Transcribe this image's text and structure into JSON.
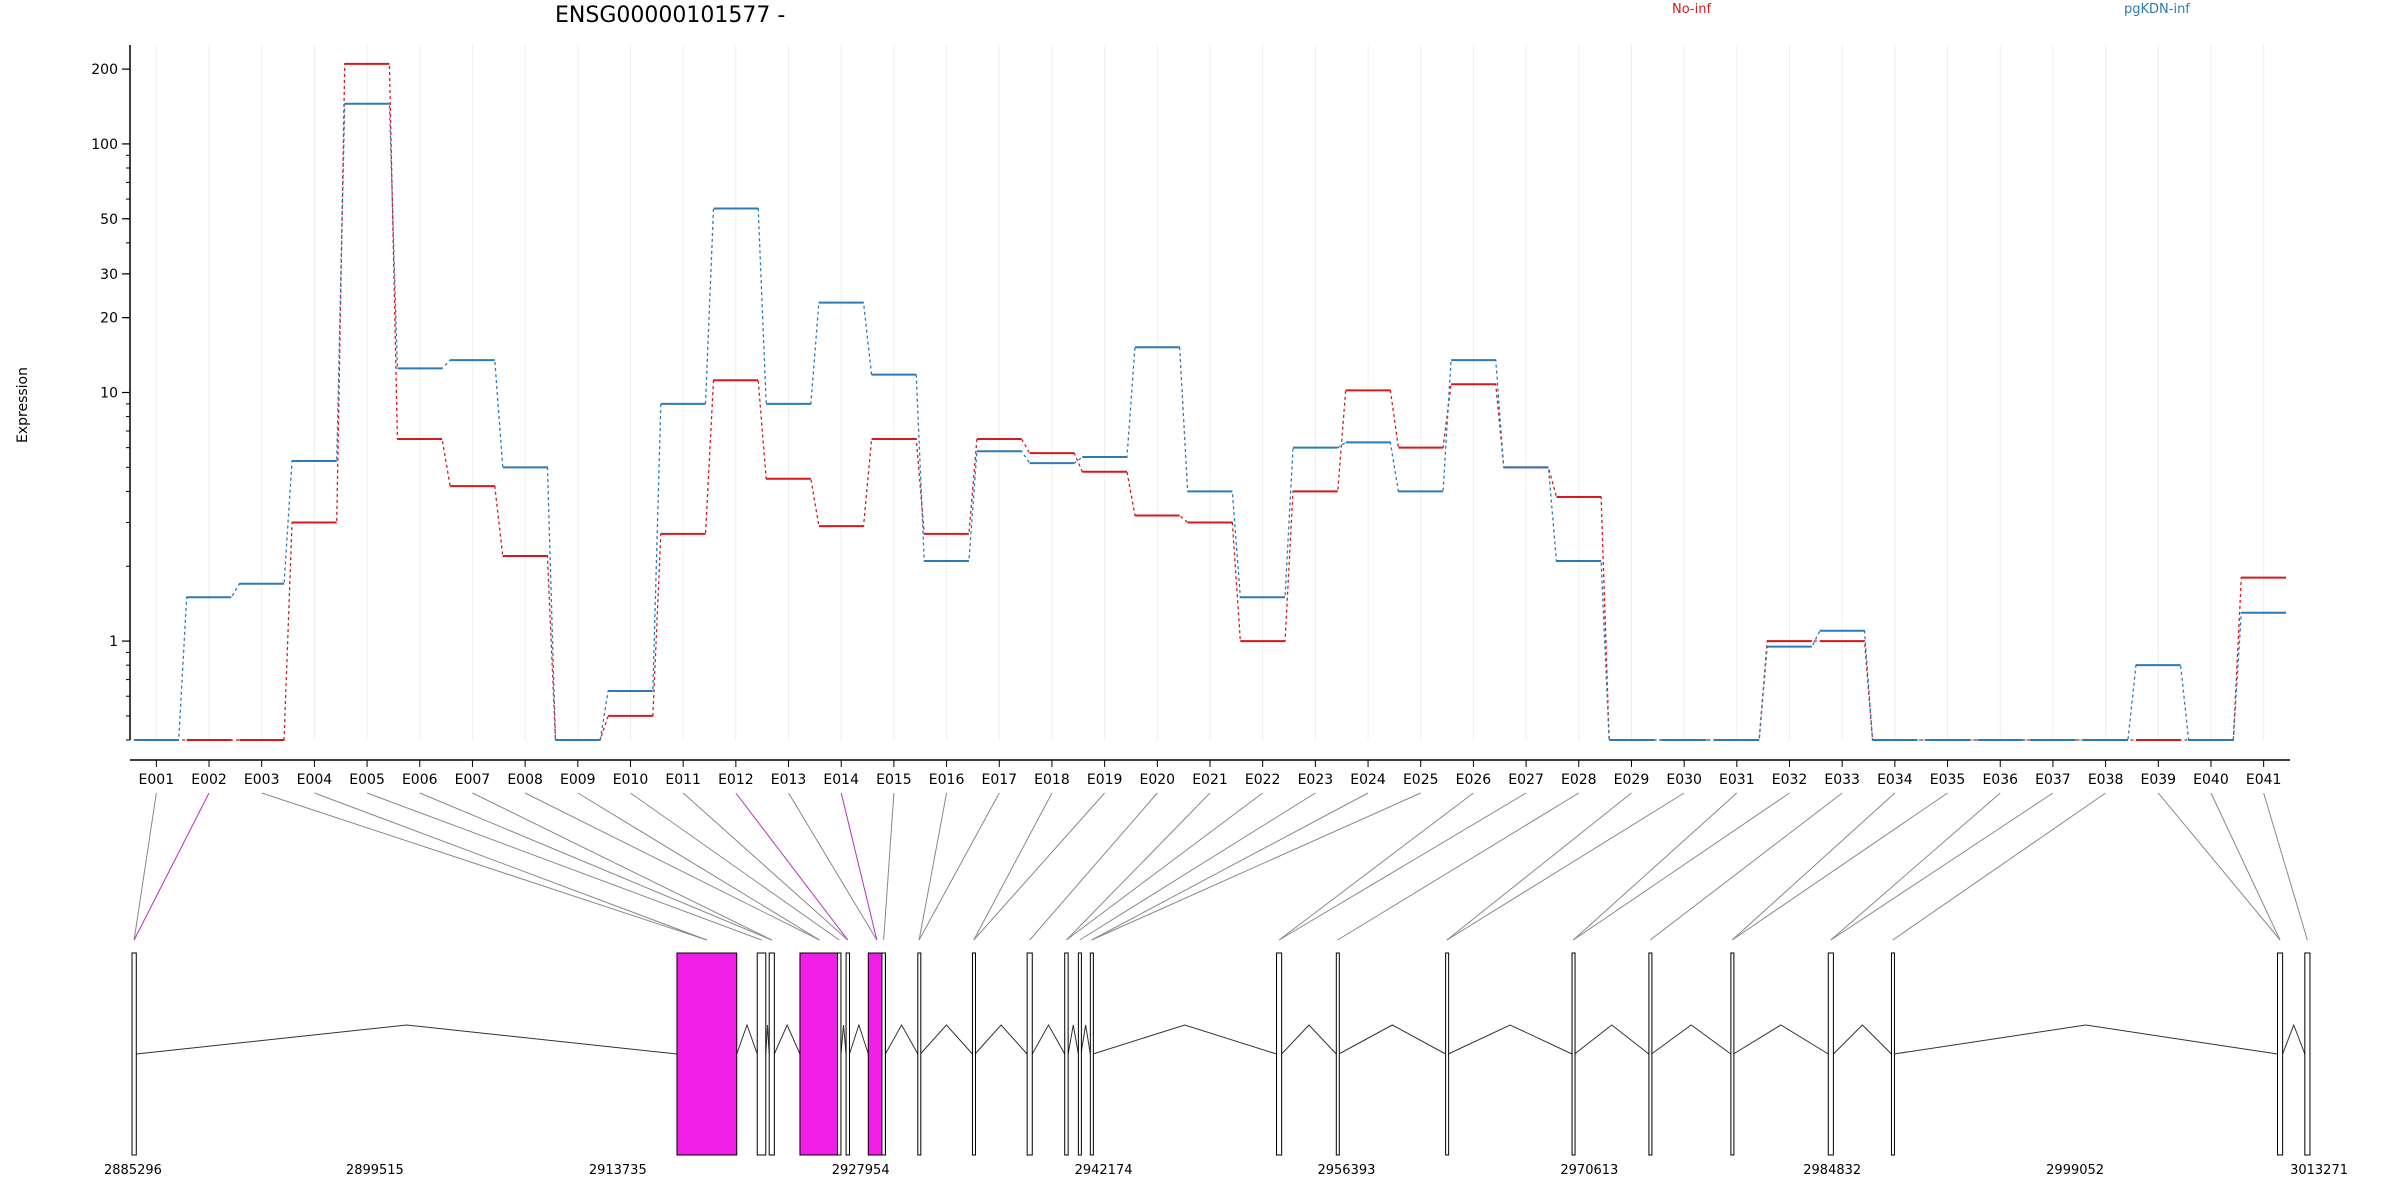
{
  "chart_data": {
    "type": "line",
    "title": "ENSG00000101577 -",
    "ylabel": "Expression",
    "xlabel": "",
    "yscale": "log",
    "ylim": [
      0.4,
      250
    ],
    "yticks": [
      {
        "value": 200,
        "label": "200"
      },
      {
        "value": 100,
        "label": "100"
      },
      {
        "value": 50,
        "label": "50"
      },
      {
        "value": 30,
        "label": "30"
      },
      {
        "value": 20,
        "label": "20"
      },
      {
        "value": 10,
        "label": "10"
      },
      {
        "value": 1,
        "label": "1"
      }
    ],
    "grid": "vertical",
    "legend_position": "top",
    "categories": [
      "E001",
      "E002",
      "E003",
      "E004",
      "E005",
      "E006",
      "E007",
      "E008",
      "E009",
      "E010",
      "E011",
      "E012",
      "E013",
      "E014",
      "E015",
      "E016",
      "E017",
      "E018",
      "E019",
      "E020",
      "E021",
      "E022",
      "E023",
      "E024",
      "E025",
      "E026",
      "E027",
      "E028",
      "E029",
      "E030",
      "E031",
      "E032",
      "E033",
      "E034",
      "E035",
      "E036",
      "E037",
      "E038",
      "E039",
      "E040",
      "E041"
    ],
    "series": [
      {
        "name": "No-inf",
        "color": "#d7191c",
        "values": [
          0.4,
          0.4,
          0.4,
          3.0,
          210,
          6.5,
          4.2,
          2.2,
          0.4,
          0.5,
          2.7,
          11.2,
          4.5,
          2.9,
          6.5,
          2.7,
          6.5,
          5.7,
          4.8,
          3.2,
          3.0,
          1.0,
          4.0,
          10.2,
          6.0,
          10.8,
          5.0,
          3.8,
          0.4,
          0.4,
          0.4,
          1.0,
          1.0,
          0.4,
          0.4,
          0.4,
          0.4,
          0.4,
          0.4,
          0.4,
          1.8
        ]
      },
      {
        "name": "pgKDN-inf",
        "color": "#2c7bb6",
        "values": [
          0.4,
          1.5,
          1.7,
          5.3,
          145,
          12.5,
          13.5,
          5.0,
          0.4,
          0.63,
          9.0,
          55,
          9.0,
          23,
          11.8,
          2.1,
          5.8,
          5.2,
          5.5,
          15.2,
          4.0,
          1.5,
          6.0,
          6.3,
          4.0,
          13.5,
          5.0,
          2.1,
          0.4,
          0.4,
          0.4,
          0.95,
          1.1,
          0.4,
          0.4,
          0.4,
          0.4,
          0.4,
          0.8,
          0.4,
          1.3
        ]
      }
    ],
    "gene_model": {
      "coordinates": [
        "2885296",
        "2899515",
        "2913735",
        "2927954",
        "2942174",
        "2956393",
        "2970613",
        "2984832",
        "2999052",
        "3013271"
      ],
      "highlight_color": "#f01ee6",
      "highlighted_exons": [
        "E002",
        "E012",
        "E014"
      ]
    }
  }
}
